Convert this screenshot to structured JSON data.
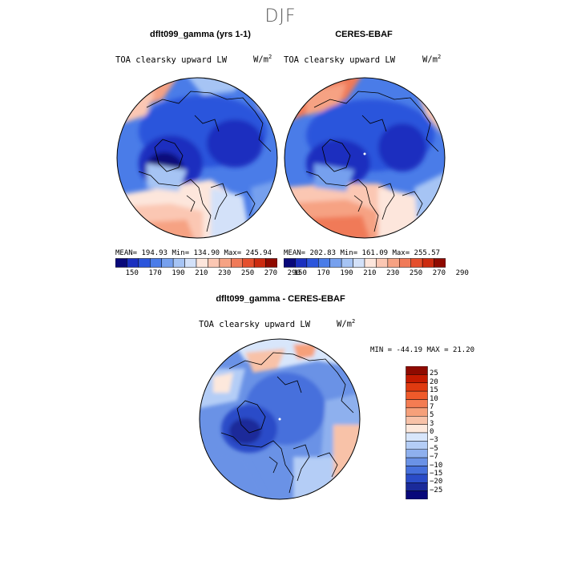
{
  "figure": {
    "title": "DJF"
  },
  "panels": [
    {
      "title": "dflt099_gamma (yrs 1-1)",
      "variable": "TOA clearsky upward LW",
      "units": "W/m",
      "units_exp": "2",
      "stats": "MEAN= 194.93   Min= 134.90   Max= 245.94"
    },
    {
      "title": "CERES-EBAF",
      "variable": "TOA clearsky upward LW",
      "units": "W/m",
      "units_exp": "2",
      "stats": "MEAN= 202.83   Min= 161.09   Max= 255.57"
    }
  ],
  "diff_panel": {
    "title": "dflt099_gamma - CERES-EBAF",
    "variable": "TOA clearsky upward LW",
    "units": "W/m",
    "units_exp": "2",
    "stats": "MIN = -44.19 MAX =  21.20"
  },
  "colorbar_abs": {
    "tick_labels": [
      "150",
      "170",
      "190",
      "210",
      "230",
      "250",
      "270",
      "290"
    ],
    "colors": [
      "#08087a",
      "#1a2fbf",
      "#2b55dc",
      "#4a7ce8",
      "#76a0ee",
      "#a6c4f4",
      "#d3e1f9",
      "#fde6dc",
      "#fbc7b3",
      "#f6a283",
      "#f07a58",
      "#e54f2d",
      "#cc2b10",
      "#8f0a00"
    ]
  },
  "colorbar_diff": {
    "tick_labels": [
      "25",
      "20",
      "15",
      "10",
      "7",
      "5",
      "3",
      "0",
      "−3",
      "−5",
      "−7",
      "−10",
      "−15",
      "−20",
      "−25"
    ],
    "colors": [
      "#8f0a00",
      "#c41a00",
      "#e03a10",
      "#ef5a2a",
      "#f47c52",
      "#f6a07a",
      "#f8c2a8",
      "#fde8dc",
      "#d8e6fb",
      "#b4cdf6",
      "#8eb0ee",
      "#6a92e6",
      "#4670dc",
      "#2a4cc8",
      "#1a2a9a",
      "#08087a"
    ]
  }
}
